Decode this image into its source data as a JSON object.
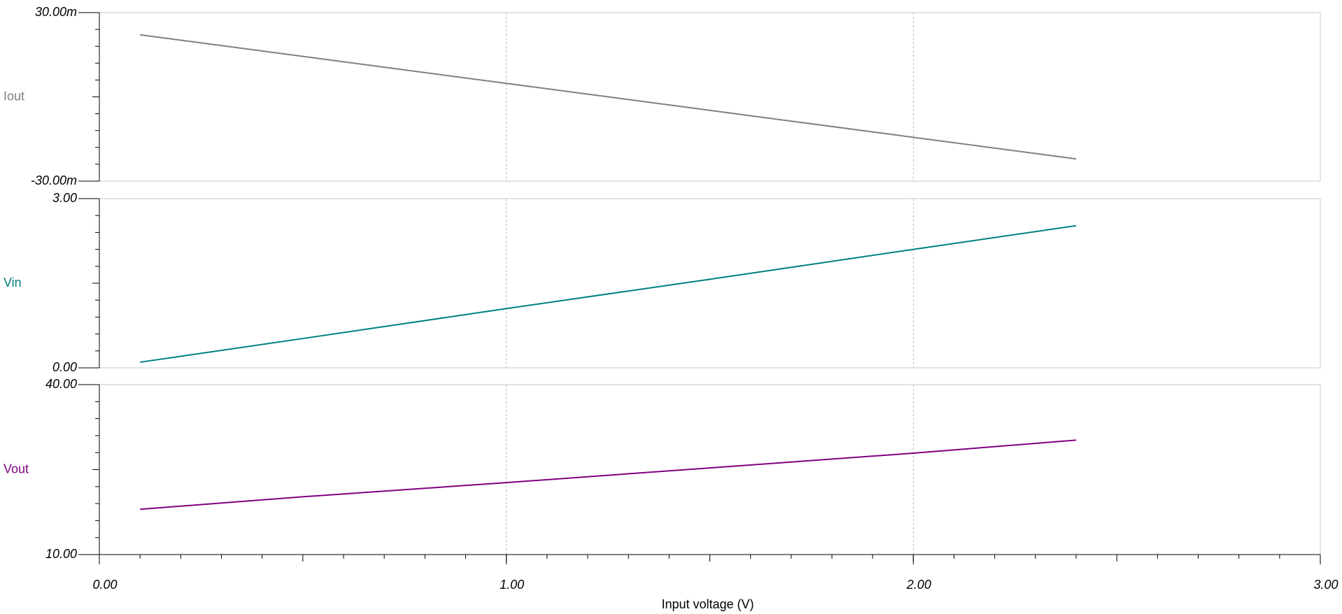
{
  "chart_data": [
    {
      "type": "line",
      "x": [
        0.1,
        0.5,
        1.0,
        1.5,
        2.0,
        2.4
      ],
      "series": [
        {
          "name": "Iout",
          "color": "#808080",
          "values": [
            22.1,
            14.4,
            4.8,
            -4.8,
            -14.4,
            -22.1
          ]
        }
      ],
      "xlim": [
        0,
        3
      ],
      "xticks": [
        0,
        1,
        2,
        3
      ],
      "ylim": [
        -30,
        30
      ],
      "yticks": [
        {
          "value": -30,
          "label": "-30.00m"
        },
        {
          "value": 30,
          "label": "30.00m"
        }
      ],
      "grid": true
    },
    {
      "type": "line",
      "x": [
        0.1,
        0.5,
        1.0,
        1.5,
        2.0,
        2.4
      ],
      "series": [
        {
          "name": "Vin",
          "color": "#008080",
          "values": [
            0.1,
            0.52,
            1.05,
            1.57,
            2.1,
            2.52
          ]
        }
      ],
      "xlim": [
        0,
        3
      ],
      "xticks": [
        0,
        1,
        2,
        3
      ],
      "ylim": [
        0,
        3
      ],
      "yticks": [
        {
          "value": 0,
          "label": "0.00"
        },
        {
          "value": 3,
          "label": "3.00"
        }
      ],
      "grid": true
    },
    {
      "type": "line",
      "x": [
        0.1,
        0.5,
        1.0,
        1.5,
        2.0,
        2.4
      ],
      "series": [
        {
          "name": "Vout",
          "color": "#800080",
          "values": [
            18.0,
            20.2,
            22.7,
            25.3,
            27.9,
            30.2
          ]
        }
      ],
      "xlim": [
        0,
        3
      ],
      "xticks": [
        {
          "value": 0,
          "label": "0.00"
        },
        {
          "value": 1,
          "label": "1.00"
        },
        {
          "value": 2,
          "label": "2.00"
        },
        {
          "value": 3,
          "label": "3.00"
        }
      ],
      "xlabel": "Input voltage (V)",
      "ylim": [
        10,
        40
      ],
      "yticks": [
        {
          "value": 10,
          "label": "10.00"
        },
        {
          "value": 40,
          "label": "40.00"
        }
      ],
      "grid": true
    }
  ]
}
